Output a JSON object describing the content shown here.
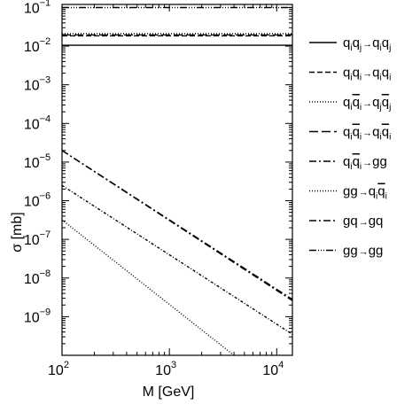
{
  "chart_data": {
    "type": "line",
    "xlabel": "M   [GeV]",
    "ylabel": "σ   [mb]",
    "x_scale": "log",
    "y_scale": "log",
    "xlim": [
      100,
      14000
    ],
    "ylim": [
      1e-10,
      0.12
    ],
    "x_ticks": [
      {
        "value": 100,
        "base": "10",
        "exp": "2"
      },
      {
        "value": 1000,
        "base": "10",
        "exp": "3"
      },
      {
        "value": 10000,
        "base": "10",
        "exp": "4"
      }
    ],
    "y_ticks": [
      {
        "value": 1e-09,
        "base": "10",
        "exp": "−9"
      },
      {
        "value": 1e-08,
        "base": "10",
        "exp": "−8"
      },
      {
        "value": 1e-07,
        "base": "10",
        "exp": "−7"
      },
      {
        "value": 1e-06,
        "base": "10",
        "exp": "−6"
      },
      {
        "value": 1e-05,
        "base": "10",
        "exp": "−5"
      },
      {
        "value": 0.0001,
        "base": "10",
        "exp": "−4"
      },
      {
        "value": 0.001,
        "base": "10",
        "exp": "−3"
      },
      {
        "value": 0.01,
        "base": "10",
        "exp": "−2"
      },
      {
        "value": 0.1,
        "base": "10",
        "exp": "−1"
      }
    ],
    "grid": false,
    "legend_position": "right",
    "series": [
      {
        "legend": {
          "t": "q",
          "s1": "i",
          "t2": "q",
          "s2": "j",
          "t3": "q",
          "s3": "i",
          "t4": "q",
          "s4": "j"
        },
        "x": [
          100,
          14000
        ],
        "y": [
          0.0105,
          0.0105
        ],
        "dash": "none"
      },
      {
        "legend": {
          "t": "q",
          "s1": "i",
          "t2": "q",
          "s2": "i",
          "t3": "q",
          "s3": "i",
          "t4": "q",
          "s4": "i"
        },
        "x": [
          100,
          14000
        ],
        "y": [
          0.0185,
          0.0185
        ],
        "dash": "6,3"
      },
      {
        "legend": {
          "t": "q",
          "s1": "i",
          "t2": "q",
          "s2": "i",
          "bar2": true,
          "t3": "q",
          "s3": "j",
          "t4": "q",
          "s4": "j",
          "bar4": true
        },
        "x": [
          100,
          14000
        ],
        "y": [
          0.021,
          0.021
        ],
        "dash": "1,2"
      },
      {
        "legend": {
          "t": "q",
          "s1": "i",
          "t2": "q",
          "s2": "i",
          "bar2": true,
          "t3": "q",
          "s3": "i",
          "t4": "q",
          "s4": "i",
          "bar4": true
        },
        "x": [
          100,
          14000
        ],
        "y": [
          0.0195,
          0.0195
        ],
        "dash": "10,4"
      },
      {
        "legend": {
          "t": "q",
          "s1": "i",
          "t2": "q",
          "s2": "i",
          "bar2": true,
          "t3": "gg"
        },
        "x": [
          100,
          14000
        ],
        "y": [
          2e-05,
          2.6e-09
        ],
        "dash": "8,3,2,3"
      },
      {
        "legend": {
          "t": "gg",
          "t3": "q",
          "s3": "i",
          "t4": "q",
          "s4": "i",
          "bar4": true
        },
        "x": [
          100,
          4000
        ],
        "y": [
          3.2e-07,
          1e-10
        ],
        "dash": "1,2"
      },
      {
        "legend": {
          "t": "gq",
          "t3": "gq"
        },
        "x": [
          100,
          14000
        ],
        "y": [
          2e-05,
          2.8e-09
        ],
        "dash": "8,3,2,3"
      },
      {
        "legend": {
          "t": "gg",
          "t3": "gg"
        },
        "x": [
          100,
          14000
        ],
        "y": [
          0.1,
          0.1
        ],
        "dash": "8,2,1,2,1,2,1,2"
      }
    ],
    "extra_curves": [
      {
        "x": [
          100,
          14000
        ],
        "y": [
          2.5e-06,
          3.5e-10
        ],
        "dash": "3,2,1,2"
      }
    ]
  }
}
